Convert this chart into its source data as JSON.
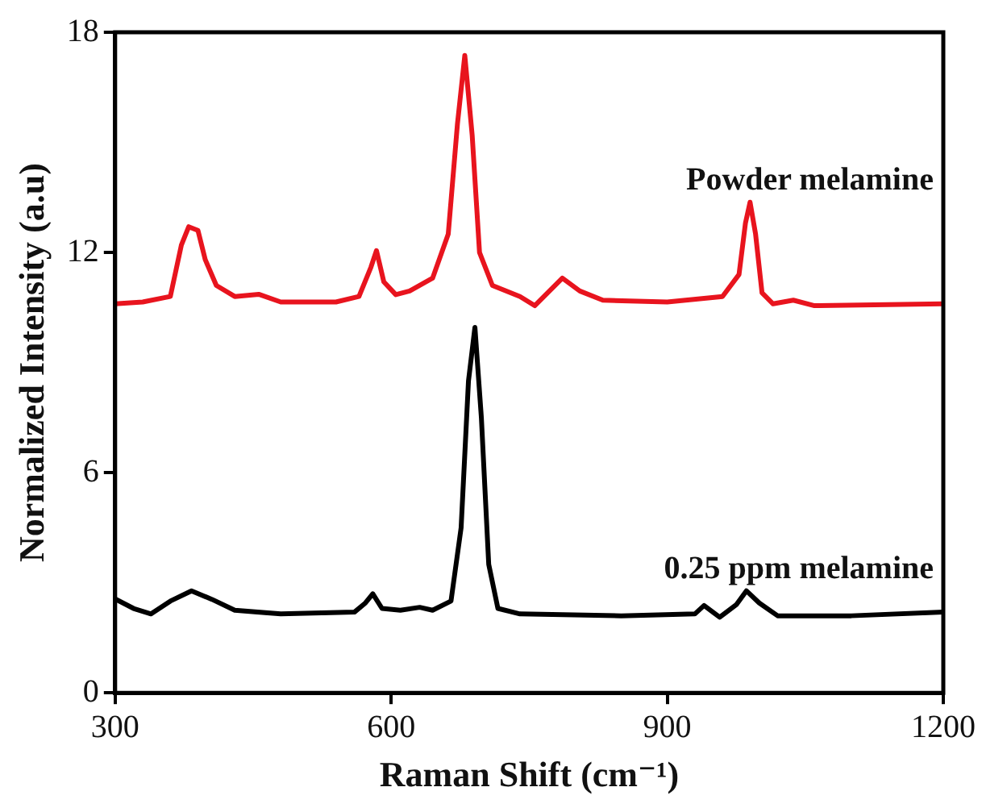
{
  "chart_data": {
    "type": "line",
    "xlabel": "Raman Shift (cm⁻¹)",
    "ylabel": "Normalized Intensity (a.u)",
    "xlim": [
      300,
      1200
    ],
    "xticks": [
      300,
      600,
      900,
      1200
    ],
    "ylim": [
      0,
      18
    ],
    "yticks": [
      0,
      6,
      12,
      18
    ],
    "grid": false,
    "legend": false,
    "marker": "none",
    "line_style": "solid",
    "series": [
      {
        "name": "Powder melamine",
        "color": "#e8141e",
        "x": [
          300,
          330,
          360,
          372,
          380,
          390,
          398,
          410,
          430,
          456,
          480,
          540,
          565,
          578,
          584,
          592,
          605,
          620,
          645,
          662,
          672,
          680,
          688,
          696,
          710,
          740,
          756,
          770,
          786,
          805,
          830,
          900,
          960,
          978,
          985,
          990,
          996,
          1003,
          1015,
          1037,
          1060,
          1200
        ],
        "values": [
          10.6,
          10.65,
          10.8,
          12.2,
          12.7,
          12.6,
          11.8,
          11.1,
          10.8,
          10.86,
          10.65,
          10.65,
          10.8,
          11.6,
          12.05,
          11.2,
          10.85,
          10.95,
          11.3,
          12.5,
          15.5,
          17.37,
          15.2,
          12.0,
          11.1,
          10.8,
          10.55,
          10.9,
          11.3,
          10.95,
          10.7,
          10.65,
          10.8,
          11.4,
          12.8,
          13.37,
          12.5,
          10.9,
          10.6,
          10.7,
          10.55,
          10.6
        ]
      },
      {
        "name": "0.25 ppm melamine",
        "color": "#000000",
        "x": [
          300,
          320,
          339,
          360,
          383,
          405,
          430,
          480,
          560,
          572,
          580,
          590,
          610,
          631,
          645,
          665,
          676,
          684,
          691,
          698,
          706,
          716,
          740,
          850,
          930,
          940,
          957,
          975,
          986,
          1000,
          1020,
          1100,
          1200
        ],
        "values": [
          2.56,
          2.3,
          2.15,
          2.5,
          2.78,
          2.55,
          2.25,
          2.15,
          2.2,
          2.45,
          2.7,
          2.3,
          2.25,
          2.33,
          2.25,
          2.5,
          4.5,
          8.5,
          9.96,
          7.5,
          3.5,
          2.3,
          2.15,
          2.1,
          2.15,
          2.38,
          2.06,
          2.4,
          2.78,
          2.45,
          2.1,
          2.1,
          2.2
        ]
      }
    ]
  }
}
